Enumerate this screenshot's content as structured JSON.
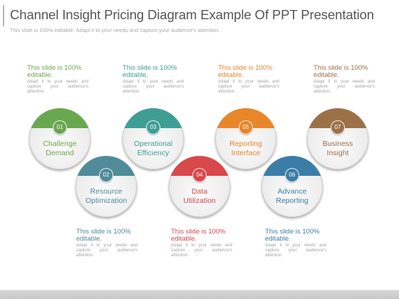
{
  "title": "Channel Insight Pricing Diagram Example Of PPT Presentation",
  "subtitle": "This slide is 100% editable. Adapt it to your needs and capture your audience's attention.",
  "note_text": {
    "lead": "This slide is 100% editable.",
    "body": "Adapt it to your needs and capture your audience's attention."
  },
  "colors": {
    "green": "#6aa84f",
    "teal": "#3f9e94",
    "orange": "#e8862a",
    "brown": "#9c7148",
    "slate": "#4f8b99",
    "red": "#d9484b",
    "blue": "#3a7ea8"
  },
  "nodes": [
    {
      "number": "01",
      "line1": "Challenge",
      "line2": "Demand",
      "color": "#6aa84f"
    },
    {
      "number": "02",
      "line1": "Resource",
      "line2": "Optimization",
      "color": "#4f8b99"
    },
    {
      "number": "03",
      "line1": "Operational",
      "line2": "Efficiency",
      "color": "#3f9e94"
    },
    {
      "number": "04",
      "line1": "Data",
      "line2": "Utilization",
      "color": "#d9484b"
    },
    {
      "number": "05",
      "line1": "Reporting",
      "line2": "Interface",
      "color": "#e8862a"
    },
    {
      "number": "06",
      "line1": "Advance",
      "line2": "Reporting",
      "color": "#3a7ea8"
    },
    {
      "number": "07",
      "line1": "Business",
      "line2": "Insight",
      "color": "#9c7148"
    }
  ],
  "notes": [
    {
      "lead": "This slide is 100% editable.",
      "body": "Adapt it to your needs and capture your audience's attention.",
      "color": "#6aa84f"
    },
    {
      "lead": "This slide is 100% editable.",
      "body": "Adapt it to your needs and capture your audience's attention.",
      "color": "#3f9e94"
    },
    {
      "lead": "This slide is 100% editable.",
      "body": "Adapt it to your needs and capture your audience's attention.",
      "color": "#e8862a"
    },
    {
      "lead": "This slide is 100% editable.",
      "body": "Adapt it to your needs and capture your audience's attention.",
      "color": "#9c7148"
    },
    {
      "lead": "This slide is 100% editable.",
      "body": "Adapt it to your needs and capture your audience's attention.",
      "color": "#4f8b99"
    },
    {
      "lead": "This slide is 100% editable.",
      "body": "Adapt it to your needs and capture your audience's attention.",
      "color": "#d9484b"
    },
    {
      "lead": "This slide is 100% editable.",
      "body": "Adapt it to your needs and capture your audience's attention.",
      "color": "#3a7ea8"
    }
  ]
}
